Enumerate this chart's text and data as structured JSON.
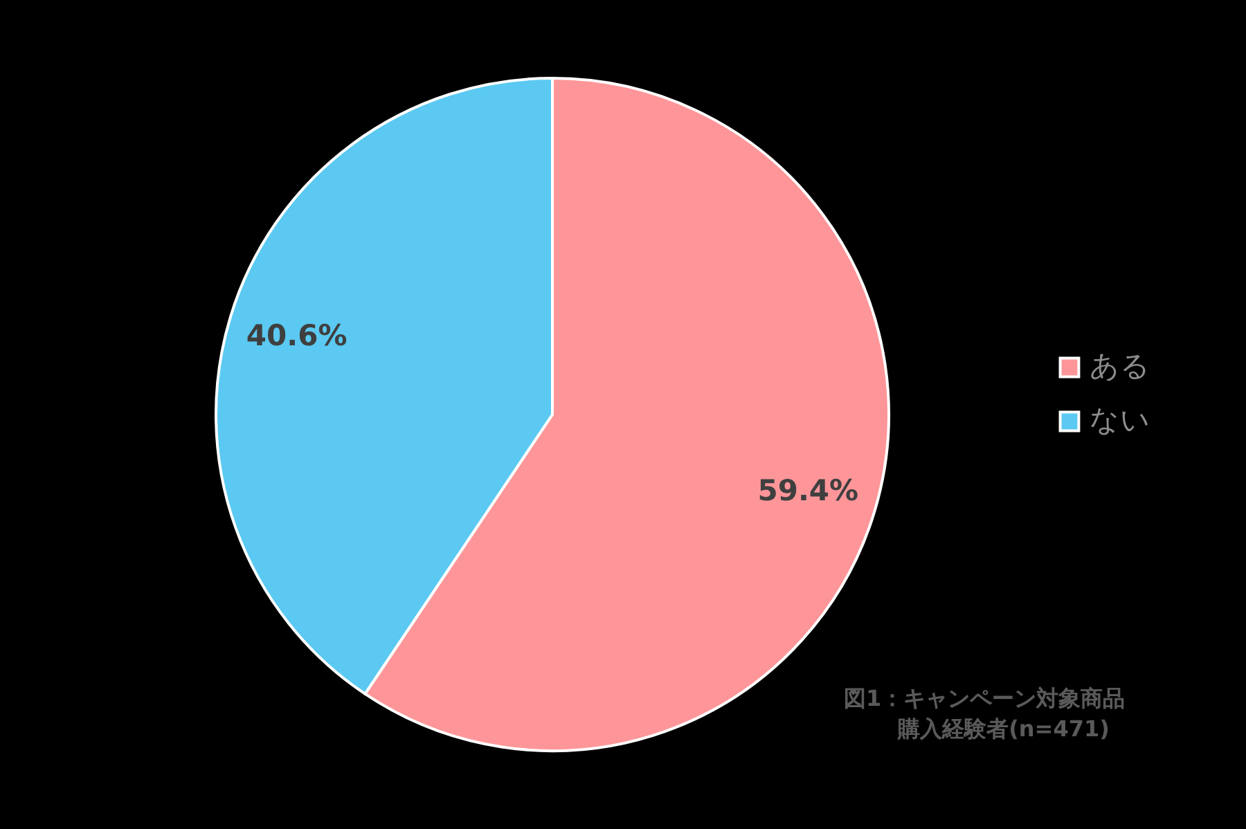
{
  "chart_data": {
    "type": "pie",
    "categories": [
      "ある",
      "ない"
    ],
    "values": [
      59.4,
      40.6
    ],
    "colors": [
      "#fe9699",
      "#5bc9f1"
    ],
    "value_labels": [
      "59.4%",
      "40.6%"
    ],
    "legend": "right",
    "annotations": [
      "図1：キャンペーン対象商品",
      "購入経験者(n=471)"
    ]
  }
}
